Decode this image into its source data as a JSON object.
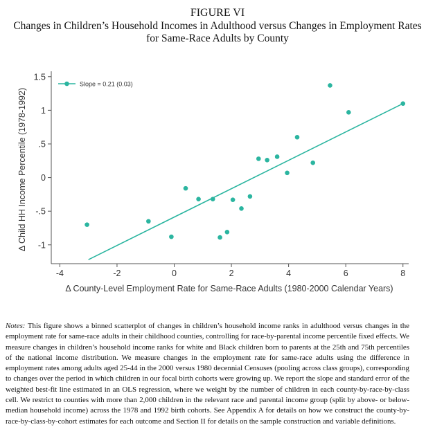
{
  "figure": {
    "label": "FIGURE VI",
    "title_line1": "Changes in Children’s Household Incomes in Adulthood versus Changes in Employment Rates",
    "title_line2": "for Same-Race Adults by County"
  },
  "chart_data": {
    "type": "scatter",
    "title": "",
    "xlabel": "Δ County-Level Employment Rate for Same-Race Adults (1980-2000 Calendar Years)",
    "ylabel": "Δ Child HH Income Percentile (1978-1992)",
    "xlim": [
      -4.3,
      8.2
    ],
    "ylim": [
      -1.28,
      1.58
    ],
    "xticks": [
      -4,
      -2,
      0,
      2,
      4,
      6,
      8
    ],
    "xtick_labels": [
      "-4",
      "-2",
      "0",
      "2",
      "4",
      "6",
      "8"
    ],
    "yticks": [
      -1,
      -0.5,
      0,
      0.5,
      1,
      1.5
    ],
    "ytick_labels": [
      "-1",
      "-.5",
      "0",
      ".5",
      "1",
      "1.5"
    ],
    "grid": false,
    "legend_position": "top-left",
    "color": "#2bb5a0",
    "series": [
      {
        "name": "Slope = 0.21 (0.03)",
        "x": [
          -3.05,
          -0.9,
          -0.1,
          0.4,
          0.85,
          1.35,
          1.6,
          1.85,
          2.05,
          2.35,
          2.65,
          2.95,
          3.25,
          3.6,
          3.95,
          4.3,
          4.85,
          5.45,
          6.1,
          8.0
        ],
        "y": [
          -0.7,
          -0.65,
          -0.88,
          -0.16,
          -0.32,
          -0.32,
          -0.89,
          -0.81,
          -0.33,
          -0.46,
          -0.28,
          0.28,
          0.26,
          0.31,
          0.07,
          0.6,
          0.22,
          1.37,
          0.97,
          1.1
        ]
      }
    ],
    "fit_line": {
      "x": [
        -3.0,
        8.0
      ],
      "y": [
        -1.22,
        1.1
      ]
    }
  },
  "notes": {
    "label": "Notes:",
    "text": "This figure shows a binned scatterplot of changes in children’s household income ranks in adulthood versus changes in the employment rate for same-race adults in their childhood counties, controlling for race-by-parental income percentile fixed effects. We measure changes in children’s household income ranks for white and Black children born to parents at the 25th and 75th percentiles of the national income distribution. We measure changes in the employment rate for same-race adults using the difference in employment rates among adults aged 25-44 in the 2000 versus 1980 decennial Censuses (pooling across class groups), corresponding to changes over the period in which children in our focal birth cohorts were growing up. We report the slope and standard error of the weighted best-fit line estimated in an OLS regression, where we weight by the number of children in each county-by-race-by-class cell. We restrict to counties with more than 2,000 children in the relevant race and parental income group (split by above- or below-median household income) across the 1978 and 1992 birth cohorts. See Appendix A for details on how we construct the county-by-race-by-class-by-cohort estimates for each outcome and Section II for details on the sample construction and variable definitions."
  }
}
